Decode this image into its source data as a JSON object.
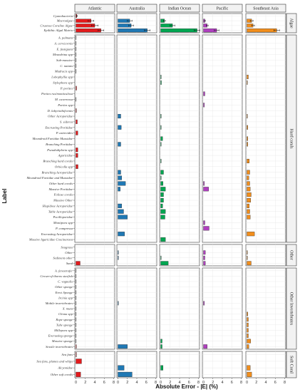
{
  "chart_data": {
    "type": "bar",
    "orientation": "horizontal",
    "xlabel": "Absolute Error - |E| (%)",
    "ylabel": "Label",
    "xlim": [
      0,
      8
    ],
    "xticks": [
      "0",
      "2",
      "4",
      "6",
      "8"
    ],
    "grid": true,
    "legend": "none",
    "regions": [
      {
        "name": "Atlantic",
        "color": "#e31a1c"
      },
      {
        "name": "Australia",
        "color": "#1f78b4"
      },
      {
        "name": "Indian Ocean",
        "color": "#00a651"
      },
      {
        "name": "Pacific",
        "color": "#b03fbf"
      },
      {
        "name": "Southeast Asia",
        "color": "#f28e1c"
      }
    ],
    "groups": [
      {
        "name": "Algae",
        "labels": [
          "Cyanobacteria",
          "Macroalgae",
          "Crustose Coraline Algae",
          "Epilithic Algal Matrix"
        ],
        "values": [
          [
            0.2,
            3.2,
            4.0,
            5.3
          ],
          [
            0,
            2.5,
            2.8,
            6.2
          ],
          [
            0,
            0.8,
            2.5,
            7.7
          ],
          [
            0,
            0.3,
            0.8,
            2.8
          ],
          [
            0,
            1.0,
            1.3,
            6.3
          ]
        ],
        "errors": [
          [
            0.1,
            0.6,
            0.7,
            0.6
          ],
          [
            0,
            0.5,
            0.5,
            0.6
          ],
          [
            0,
            0.2,
            0.5,
            0.6
          ],
          [
            0,
            0.1,
            0.2,
            0.5
          ],
          [
            0,
            0.3,
            0.3,
            0.6
          ]
        ]
      },
      {
        "name": "Hard corals",
        "labels": [
          "A. palmata",
          "A. cervicornis",
          "E. fastigiata",
          "Meandrina spp",
          "Sub-massive",
          "C. natans",
          "Madracis spp",
          "Lobophyllia spp",
          "Stylophora spp",
          "P. porites",
          "Porites rus/monticulosa",
          "M. cavernosa",
          "Porites spp",
          "D. labyrinthiformis",
          "Other Acroporidae",
          "S. siderea",
          "Encrusting Poritidae",
          "P. astreoides",
          "Meandroid Faviidae Mussidae",
          "Branching Poritidae",
          "Pseudodiploria spp",
          "Agaricidae",
          "Branching hard corals",
          "Orbicella spp",
          "Branching Acroporidae",
          "Meandroid Faviidae and Mussidae",
          "Other hard corals",
          "Massive Poritidae",
          "Foliose corals",
          "Massive Other",
          "Hispidose Acroporidae",
          "Table Acroporidae",
          "Pocilloporidae",
          "Montipora spp",
          "P. compressa",
          "Encrusting Acroporidae",
          "Massive Agaricidae Coscinaraea"
        ],
        "values": [
          [
            0.05,
            0.05,
            0.05,
            0.05,
            0.05,
            0.05,
            0.05,
            0,
            0,
            0.15,
            0,
            0.05,
            0,
            0.1,
            0,
            0.3,
            0,
            0.4,
            0,
            0,
            0.4,
            0.4,
            0,
            0.45,
            0,
            0,
            0,
            0,
            0,
            0,
            0,
            0,
            0,
            0,
            0,
            0,
            0
          ],
          [
            0,
            0,
            0,
            0,
            0,
            0,
            0,
            0,
            0,
            0,
            0,
            0,
            0,
            0,
            0.6,
            0,
            0.7,
            0,
            0,
            0.6,
            0,
            0,
            0,
            0,
            0.6,
            0.8,
            1.6,
            0.5,
            0,
            0,
            0.8,
            1.2,
            2.0,
            0,
            0,
            1.4,
            0
          ],
          [
            0,
            0,
            0,
            0,
            0,
            0,
            0,
            0.1,
            0.15,
            0,
            0,
            0,
            0,
            0,
            0.1,
            0,
            0.1,
            0,
            0.4,
            0.1,
            0,
            0,
            0.1,
            0,
            0.6,
            0.1,
            0.5,
            1.0,
            0.6,
            0.6,
            0.4,
            1.0,
            0.9,
            0,
            0,
            0,
            1.0
          ],
          [
            0,
            0,
            0,
            0,
            0,
            0,
            0,
            0,
            0,
            0,
            0.3,
            0,
            0.2,
            0,
            0,
            0,
            0,
            0,
            0,
            0,
            0,
            0,
            0,
            0,
            0,
            0,
            0.2,
            1.1,
            0,
            0,
            0,
            0,
            0,
            0.3,
            1.2,
            0,
            0
          ],
          [
            0,
            0,
            0,
            0,
            0,
            0,
            0,
            0.3,
            0.1,
            0,
            0,
            0,
            0,
            0,
            0.1,
            0,
            0.2,
            0,
            0.2,
            0.2,
            0,
            0,
            0.5,
            0,
            0.6,
            0.4,
            0.6,
            0.7,
            0.9,
            0.8,
            0.5,
            0.6,
            0.7,
            0,
            0,
            1.6,
            0
          ]
        ]
      },
      {
        "name": "Other",
        "labels": [
          "Seagrass",
          "Other",
          "Sediment other",
          "Sand"
        ],
        "values": [
          [
            0,
            0,
            0,
            0.9
          ],
          [
            0,
            0.1,
            0.1,
            0
          ],
          [
            0,
            0,
            0.1,
            1.6
          ],
          [
            0,
            0.4,
            0.3,
            0.4
          ],
          [
            0,
            0.1,
            0.1,
            0.9
          ]
        ]
      },
      {
        "name": "Other Invertebrates",
        "labels": [
          "A. fenestrafer",
          "Crown-of-thorns starfish",
          "C. vagnalis",
          "Other sponge",
          "Erect Sponge",
          "Ircinia spp",
          "Mobile invertebrates",
          "X. muta",
          "Cliona spp",
          "Rope sponge",
          "Tube sponge",
          "Millepora spp",
          "Encrusting sponge",
          "Massive sponge",
          "Sessile invertebrates"
        ],
        "values": [
          [
            0.05,
            0.05,
            0.05,
            0.05,
            0.05,
            0.05,
            0.05,
            0.05,
            0.05,
            0.05,
            0.05,
            0.05,
            0.05,
            0.05,
            0.1
          ],
          [
            0,
            0,
            0,
            0,
            0,
            0,
            0.1,
            0,
            0,
            0,
            0,
            0,
            0,
            0,
            2.0
          ],
          [
            0,
            0,
            0,
            0,
            0,
            0,
            0,
            0,
            0,
            0,
            0,
            0,
            0,
            0.3,
            0.3
          ],
          [
            0,
            0,
            0,
            0,
            0,
            0,
            0.2,
            0,
            0,
            0,
            0,
            0,
            0,
            0,
            0.8
          ],
          [
            0,
            0,
            0,
            0,
            0,
            0,
            0,
            0,
            0.2,
            0.3,
            0.3,
            0.3,
            0.3,
            0.8,
            0.4
          ]
        ]
      },
      {
        "name": "Soft Coral",
        "labels": [
          "Sea fans",
          "Sea fans, plumes and whips",
          "Alcyonidae",
          "Other soft corals"
        ],
        "values": [
          [
            0.1,
            1.2,
            0,
            1.0
          ],
          [
            0,
            0,
            1.3,
            3.0
          ],
          [
            0,
            0,
            0.5,
            0
          ],
          [
            0,
            0,
            0,
            0
          ],
          [
            0,
            0,
            0.7,
            1.0
          ]
        ]
      }
    ]
  }
}
